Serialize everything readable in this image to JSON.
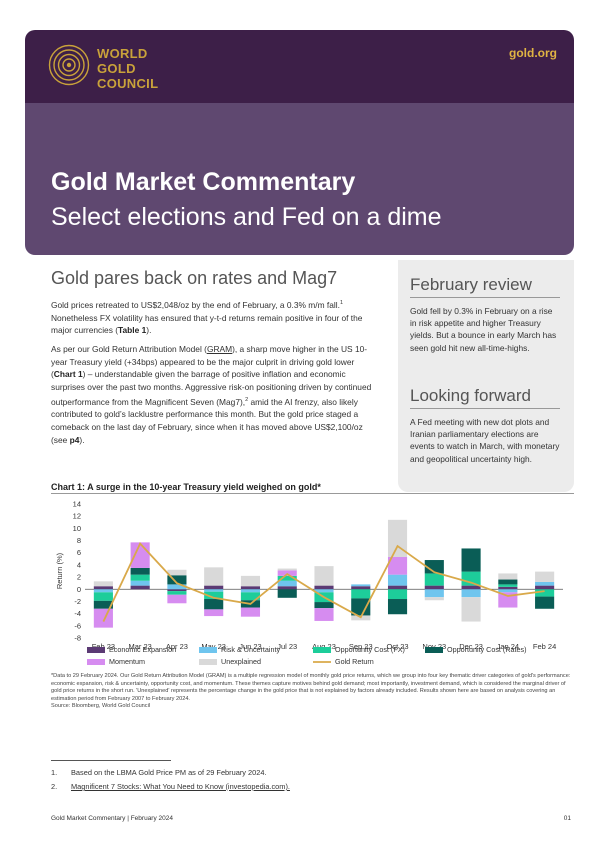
{
  "header": {
    "logo_line1": "WORLD",
    "logo_line2": "GOLD",
    "logo_line3": "COUNCIL",
    "site": "gold.org",
    "title": "Gold Market Commentary",
    "subtitle": "Select elections and Fed on a dime",
    "colors": {
      "dark": "#3d1f48",
      "mid": "#5f4870",
      "gold": "#c9a23a"
    }
  },
  "main": {
    "heading": "Gold pares back on rates and Mag7",
    "p1_a": "Gold prices retreated to US$2,048/oz by the end of February, a 0.3% m/m fall.",
    "p1_sup": "1",
    "p1_b": " Nonetheless FX volatility has ensured that y-t-d returns remain positive in four of the major currencies (",
    "p1_bold": "Table 1",
    "p1_c": ").",
    "p2_a": "As per our Gold Return Attribution Model (",
    "p2_link": "GRAM",
    "p2_b": "), a sharp move higher in the US 10-year Treasury yield (+34bps) appeared to be the major culprit in driving gold lower (",
    "p2_bold": "Chart 1",
    "p2_c": ") – understandable given the barrage of positive inflation and economic surprises over the past two months. Aggressive risk-on positioning driven by continued outperformance from the Magnificent Seven (Mag7),",
    "p2_sup": "2",
    "p2_d": " amid the AI frenzy, also likely contributed to gold’s lacklustre performance this month. But the gold price staged a comeback on the last day of February, since when it has moved above US$2,100/oz (see ",
    "p2_bold2": "p4",
    "p2_e": ")."
  },
  "sidebar": {
    "h1": "February review",
    "p1": "Gold fell by 0.3% in February on a rise in risk appetite and higher Treasury yields. But a bounce in early March has seen gold hit new all-time-highs.",
    "h2": "Looking forward",
    "p2": "A Fed meeting with new dot plots and Iranian parliamentary elections are events to watch in March, with monetary and geopolitical uncertainty high."
  },
  "chart_title": "Chart 1: A surge in the 10-year Treasury yield weighed on gold*",
  "chart_data": {
    "type": "bar",
    "stacked": true,
    "categories": [
      "Feb 23",
      "Mar 23",
      "Apr 23",
      "May 23",
      "Jun 23",
      "Jul 23",
      "Aug 23",
      "Sep 23",
      "Oct 23",
      "Nov 23",
      "Dec 23",
      "Jan 24",
      "Feb 24"
    ],
    "ylabel": "Return (%)",
    "ylim": [
      -8,
      14
    ],
    "yticks": [
      -8,
      -6,
      -4,
      -2,
      0,
      2,
      4,
      6,
      8,
      10,
      12,
      14
    ],
    "legend_position": "bottom",
    "series": [
      {
        "name": "Economic Expansion",
        "color": "#5b3a74",
        "values": [
          0.5,
          0.6,
          -0.3,
          0.6,
          0.5,
          0.5,
          0.6,
          0.5,
          0.6,
          0.6,
          0.6,
          0.4,
          0.6
        ]
      },
      {
        "name": "Risk & Uncertainty",
        "color": "#6fc5ee",
        "values": [
          -0.5,
          0.8,
          0.8,
          -0.4,
          -0.5,
          0.9,
          -0.5,
          0.3,
          1.8,
          -1.3,
          -1.3,
          -0.5,
          0.6
        ]
      },
      {
        "name": "Opportunity Cost (FX)",
        "color": "#1dcd9a",
        "values": [
          -1.4,
          1.0,
          -0.6,
          -1.2,
          -1.3,
          0.8,
          -1.6,
          -1.5,
          -1.6,
          2.0,
          2.3,
          0.4,
          -1.2
        ]
      },
      {
        "name": "Opportunity Cost (Rates)",
        "color": "#0a5d56",
        "values": [
          -1.3,
          1.1,
          1.5,
          -1.7,
          -1.2,
          -1.4,
          -1.0,
          -2.8,
          -2.5,
          2.2,
          3.8,
          0.8,
          -2.0
        ]
      },
      {
        "name": "Momentum",
        "color": "#d68cf0",
        "values": [
          -3.1,
          4.2,
          -1.4,
          -1.1,
          -1.5,
          0.9,
          -2.1,
          0.0,
          2.9,
          0.0,
          0.0,
          -2.5,
          0.0
        ]
      },
      {
        "name": "Unexplained",
        "color": "#d9d9d9",
        "values": [
          0.8,
          0.0,
          0.9,
          3.0,
          1.7,
          0.3,
          3.2,
          -0.8,
          6.1,
          -0.5,
          -4.0,
          1.0,
          1.7
        ]
      }
    ],
    "line": {
      "name": "Gold Return",
      "color": "#d9a94a",
      "values": [
        -5.3,
        7.5,
        1.0,
        -1.4,
        -2.4,
        2.5,
        -1.3,
        -4.6,
        7.1,
        2.8,
        1.1,
        -1.1,
        -0.3
      ]
    }
  },
  "note": "*Data to 29 February 2024. Our Gold Return Attribution Model (GRAM) is a multiple regression model of monthly gold price returns, which we group into four key thematic driver categories of gold's performance: economic expansion, risk & uncertainty, opportunity cost, and momentum. These themes capture motives behind gold demand; most importantly, investment demand, which is considered the marginal driver of gold price returns in the short run. 'Unexplained' represents the percentage change in the gold price that is not explained by factors already included. Results shown here are based on analysis covering an estimation period from February 2007 to February 2024.",
  "source": "Source: Bloomberg, World Gold Council",
  "footnotes": {
    "n1": "1.",
    "t1": "Based on the LBMA Gold Price PM as of 29 February 2024.",
    "n2": "2.",
    "t2": "Magnificent 7 Stocks: What You Need to Know (investopedia.com)."
  },
  "footer": {
    "left": "Gold Market Commentary  |  February 2024",
    "page": "01"
  }
}
